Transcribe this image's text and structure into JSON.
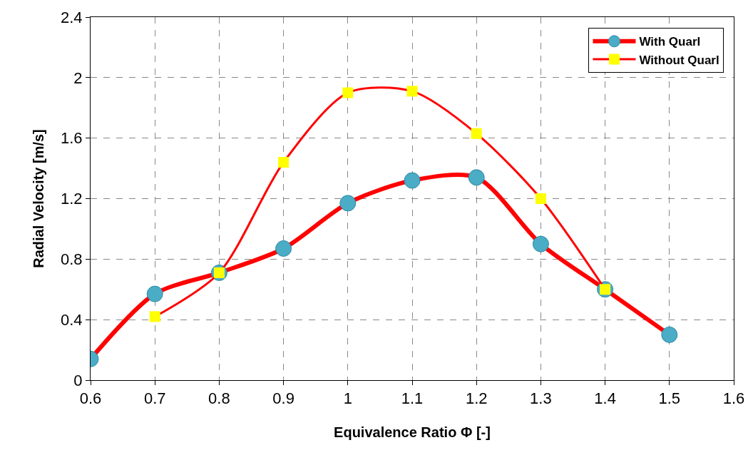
{
  "chart_data": {
    "type": "line",
    "xlabel": "Equivalence Ratio Φ [-]",
    "ylabel": "Radial Velocity [m/s]",
    "x": [
      0.6,
      0.7,
      0.8,
      0.9,
      1.0,
      1.1,
      1.2,
      1.3,
      1.4,
      1.5
    ],
    "series": [
      {
        "name": "With Quarl",
        "color": "#ff0000",
        "marker": "circle",
        "colors": [
          "#4bacc6",
          "#4bacc6",
          "#4bacc6",
          "#4bacc6",
          "#4bacc6",
          "#4bacc6",
          "#4bacc6",
          "#4bacc6",
          "#4bacc6",
          "#4bacc6"
        ],
        "values": [
          0.14,
          0.57,
          0.71,
          0.87,
          1.17,
          1.32,
          1.34,
          0.9,
          0.6,
          0.3
        ]
      },
      {
        "name": "Without Quarl",
        "color": "#ff0000",
        "marker": "square",
        "x": [
          0.7,
          0.8,
          0.9,
          1.0,
          1.1,
          1.2,
          1.3,
          1.4
        ],
        "colors": [
          "#ffff00",
          "#ffff00",
          "#ffff00",
          "#ffff00",
          "#ffff00",
          "#ffff00",
          "#ffff00",
          "#ffff00"
        ],
        "values": [
          0.42,
          0.71,
          1.44,
          1.9,
          1.91,
          1.63,
          1.2,
          0.6
        ]
      }
    ],
    "xlim": [
      0.6,
      1.6
    ],
    "xticks": [
      0.6,
      0.7,
      0.8,
      0.9,
      1,
      1.1,
      1.2,
      1.3,
      1.4,
      1.5,
      1.6
    ],
    "ylim": [
      0,
      2.4
    ],
    "yticks": [
      0,
      0.4,
      0.8,
      1.2,
      1.6,
      2,
      2.4
    ],
    "grid": true,
    "legend": "top right",
    "line_style": "solid"
  }
}
